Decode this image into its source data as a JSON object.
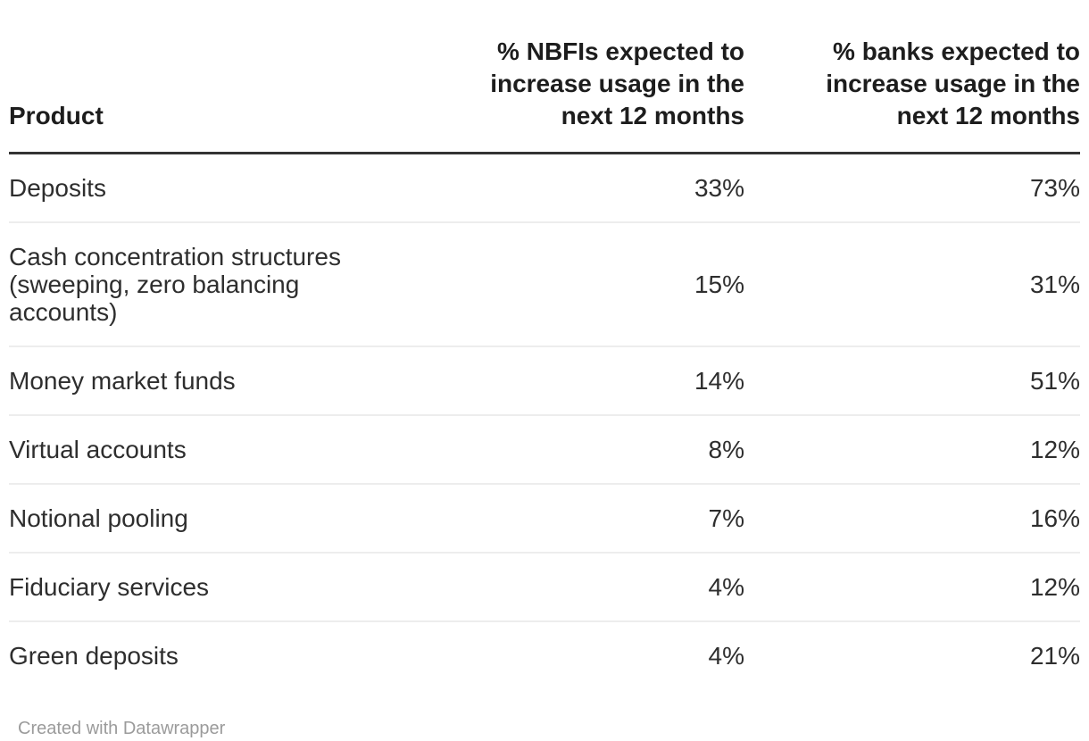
{
  "chart_data": {
    "type": "table",
    "columns": [
      "Product",
      "% NBFIs expected to increase usage in the next 12 months",
      "% banks expected to increase usage in the next 12 months"
    ],
    "rows": [
      [
        "Deposits",
        33,
        73
      ],
      [
        "Cash concentration structures (sweeping, zero balancing accounts)",
        15,
        31
      ],
      [
        "Money market funds",
        14,
        51
      ],
      [
        "Virtual accounts",
        8,
        12
      ],
      [
        "Notional pooling",
        7,
        16
      ],
      [
        "Fiduciary services",
        4,
        12
      ],
      [
        "Green deposits",
        4,
        21
      ]
    ],
    "values_unit": "%",
    "layout_hints": {
      "value_columns_align": "right",
      "header_rule": "thick-dark",
      "row_dividers": "thin-light",
      "gridlines_vertical": false
    }
  },
  "table": {
    "headers": {
      "product": "Product",
      "nbfi": "% NBFIs expected to\nincrease usage in the\nnext 12 months",
      "banks": "% banks expected to\nincrease usage in the\nnext 12 months"
    },
    "rows": [
      {
        "product": "Deposits",
        "nbfi": "33%",
        "banks": "73%"
      },
      {
        "product": "Cash concentration structures\n(sweeping, zero balancing\naccounts)",
        "nbfi": "15%",
        "banks": "31%"
      },
      {
        "product": "Money market funds",
        "nbfi": "14%",
        "banks": "51%"
      },
      {
        "product": "Virtual accounts",
        "nbfi": "8%",
        "banks": "12%"
      },
      {
        "product": "Notional pooling",
        "nbfi": "7%",
        "banks": "16%"
      },
      {
        "product": "Fiduciary services",
        "nbfi": "4%",
        "banks": "12%"
      },
      {
        "product": "Green deposits",
        "nbfi": "4%",
        "banks": "21%"
      }
    ]
  },
  "footer": {
    "credit": "Created with Datawrapper"
  },
  "colors": {
    "header_text": "#1d1d1d",
    "body_text": "#2e2e2e",
    "header_rule": "#333333",
    "row_divider": "#ededed",
    "credit_text": "#9b9b9b",
    "background": "#ffffff"
  }
}
